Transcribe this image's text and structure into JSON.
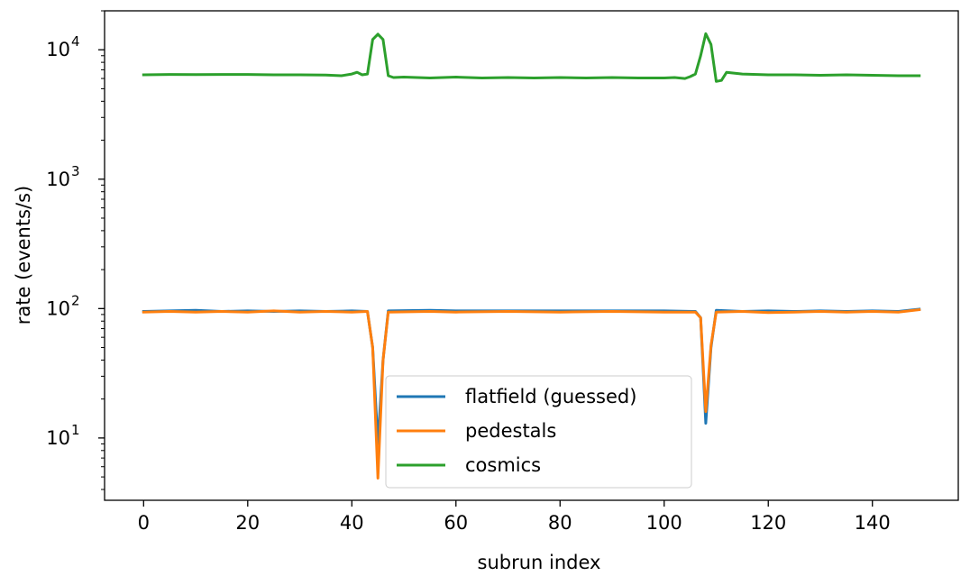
{
  "chart_data": {
    "type": "line",
    "title": "",
    "xlabel": "subrun index",
    "ylabel": "rate (events/s)",
    "yscale": "log",
    "xlim": [
      -7.5,
      156.5
    ],
    "ylim": [
      3.3,
      20000
    ],
    "xticks": [
      0,
      20,
      40,
      60,
      80,
      100,
      120,
      140
    ],
    "yticks": [
      10,
      100,
      1000,
      10000
    ],
    "ytick_labels": [
      {
        "base": "10",
        "exp": "1"
      },
      {
        "base": "10",
        "exp": "2"
      },
      {
        "base": "10",
        "exp": "3"
      },
      {
        "base": "10",
        "exp": "4"
      }
    ],
    "grid": false,
    "legend_position": "lower-center",
    "series": [
      {
        "name": "flatfield (guessed)",
        "color": "#1f77b4",
        "points": [
          [
            0,
            95
          ],
          [
            5,
            96
          ],
          [
            10,
            97
          ],
          [
            15,
            95
          ],
          [
            20,
            96
          ],
          [
            25,
            95
          ],
          [
            30,
            96
          ],
          [
            35,
            95
          ],
          [
            40,
            96
          ],
          [
            43,
            95
          ],
          [
            44,
            50
          ],
          [
            45,
            9
          ],
          [
            46,
            40
          ],
          [
            47,
            96
          ],
          [
            55,
            97
          ],
          [
            60,
            96
          ],
          [
            70,
            96
          ],
          [
            80,
            96
          ],
          [
            90,
            96
          ],
          [
            100,
            96
          ],
          [
            106,
            95
          ],
          [
            107,
            85
          ],
          [
            108,
            13
          ],
          [
            109,
            50
          ],
          [
            110,
            97
          ],
          [
            115,
            95
          ],
          [
            120,
            96
          ],
          [
            125,
            95
          ],
          [
            130,
            96
          ],
          [
            135,
            95
          ],
          [
            140,
            96
          ],
          [
            145,
            95
          ],
          [
            149,
            99
          ]
        ]
      },
      {
        "name": "pedestals",
        "color": "#ff7f0e",
        "points": [
          [
            0,
            94
          ],
          [
            5,
            95
          ],
          [
            10,
            94
          ],
          [
            15,
            95
          ],
          [
            20,
            94
          ],
          [
            25,
            96
          ],
          [
            30,
            94
          ],
          [
            35,
            95
          ],
          [
            40,
            94
          ],
          [
            43,
            95
          ],
          [
            44,
            50
          ],
          [
            45,
            4.9
          ],
          [
            46,
            40
          ],
          [
            47,
            94
          ],
          [
            55,
            95
          ],
          [
            60,
            94
          ],
          [
            70,
            95
          ],
          [
            80,
            94
          ],
          [
            90,
            95
          ],
          [
            100,
            94
          ],
          [
            106,
            94
          ],
          [
            107,
            85
          ],
          [
            108,
            16
          ],
          [
            109,
            52
          ],
          [
            110,
            94
          ],
          [
            115,
            95
          ],
          [
            120,
            93
          ],
          [
            125,
            94
          ],
          [
            130,
            95
          ],
          [
            135,
            94
          ],
          [
            140,
            95
          ],
          [
            145,
            94
          ],
          [
            149,
            98
          ]
        ]
      },
      {
        "name": "cosmics",
        "color": "#2ca02c",
        "points": [
          [
            0,
            6400
          ],
          [
            5,
            6450
          ],
          [
            10,
            6420
          ],
          [
            15,
            6450
          ],
          [
            20,
            6450
          ],
          [
            25,
            6400
          ],
          [
            30,
            6400
          ],
          [
            35,
            6380
          ],
          [
            38,
            6300
          ],
          [
            40,
            6500
          ],
          [
            41,
            6700
          ],
          [
            42,
            6400
          ],
          [
            43,
            6500
          ],
          [
            44,
            12000
          ],
          [
            45,
            13200
          ],
          [
            46,
            12000
          ],
          [
            47,
            6300
          ],
          [
            48,
            6100
          ],
          [
            50,
            6150
          ],
          [
            55,
            6050
          ],
          [
            60,
            6150
          ],
          [
            65,
            6050
          ],
          [
            70,
            6100
          ],
          [
            75,
            6050
          ],
          [
            80,
            6100
          ],
          [
            85,
            6050
          ],
          [
            90,
            6100
          ],
          [
            95,
            6050
          ],
          [
            100,
            6050
          ],
          [
            102,
            6100
          ],
          [
            104,
            6000
          ],
          [
            105,
            6200
          ],
          [
            106,
            6500
          ],
          [
            107,
            9000
          ],
          [
            108,
            13300
          ],
          [
            109,
            11000
          ],
          [
            110,
            5700
          ],
          [
            111,
            5800
          ],
          [
            112,
            6700
          ],
          [
            115,
            6500
          ],
          [
            120,
            6400
          ],
          [
            125,
            6400
          ],
          [
            130,
            6350
          ],
          [
            135,
            6400
          ],
          [
            140,
            6350
          ],
          [
            145,
            6300
          ],
          [
            149,
            6300
          ]
        ]
      }
    ]
  }
}
